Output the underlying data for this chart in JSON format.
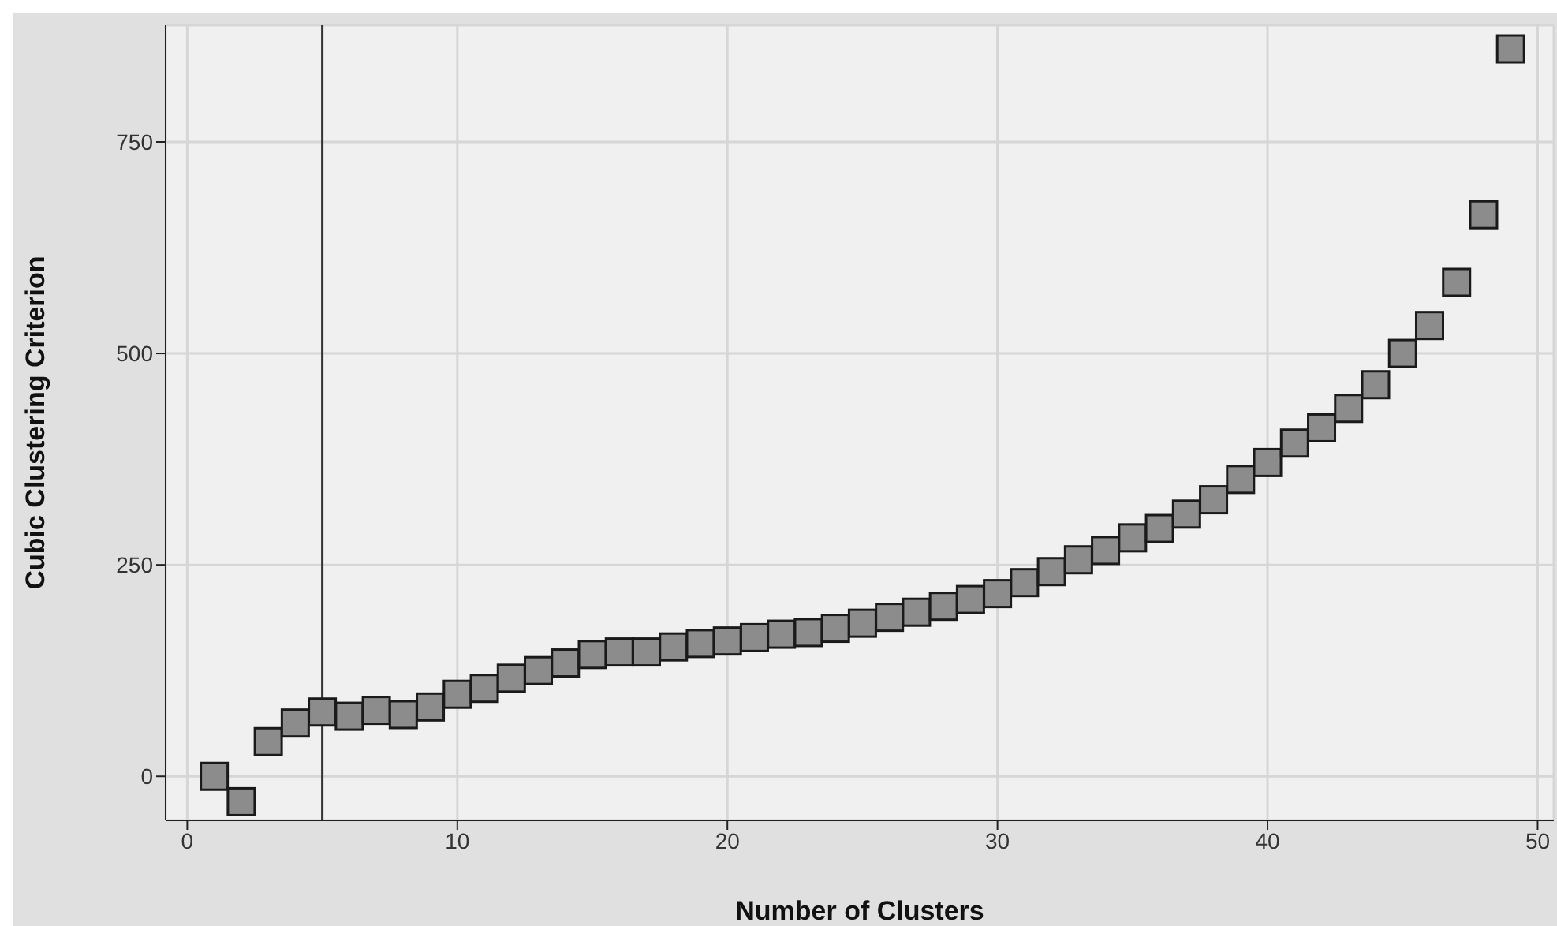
{
  "chart_data": {
    "type": "scatter",
    "xlabel": "Number of Clusters",
    "ylabel": "Cubic Clustering Criterion",
    "x": [
      1,
      2,
      3,
      4,
      5,
      6,
      7,
      8,
      9,
      10,
      11,
      12,
      13,
      14,
      15,
      16,
      17,
      18,
      19,
      20,
      21,
      22,
      23,
      24,
      25,
      26,
      27,
      28,
      29,
      30,
      31,
      32,
      33,
      34,
      35,
      36,
      37,
      38,
      39,
      40,
      41,
      42,
      43,
      44,
      45,
      46,
      47,
      48,
      49
    ],
    "series": [
      {
        "color": "#8c8c8c",
        "values": [
          0,
          -30,
          41,
          63,
          76,
          71,
          78,
          73,
          82,
          97,
          104,
          116,
          125,
          134,
          144,
          147,
          147,
          153,
          157,
          160,
          164,
          168,
          170,
          175,
          181,
          188,
          194,
          201,
          209,
          216,
          229,
          242,
          256,
          267,
          282,
          293,
          310,
          327,
          351,
          371,
          394,
          412,
          435,
          463,
          500,
          533,
          584,
          664,
          860
        ]
      }
    ],
    "marker": "square",
    "xlim": [
      -0.8,
      50.6
    ],
    "xticks": [
      0,
      10,
      20,
      30,
      40,
      50
    ],
    "ylim": [
      -52,
      888
    ],
    "yticks": [
      0,
      250,
      500,
      750
    ],
    "grid": true,
    "ref_lines": [
      {
        "axis": "x",
        "value": 5,
        "color": "#333333"
      }
    ]
  }
}
